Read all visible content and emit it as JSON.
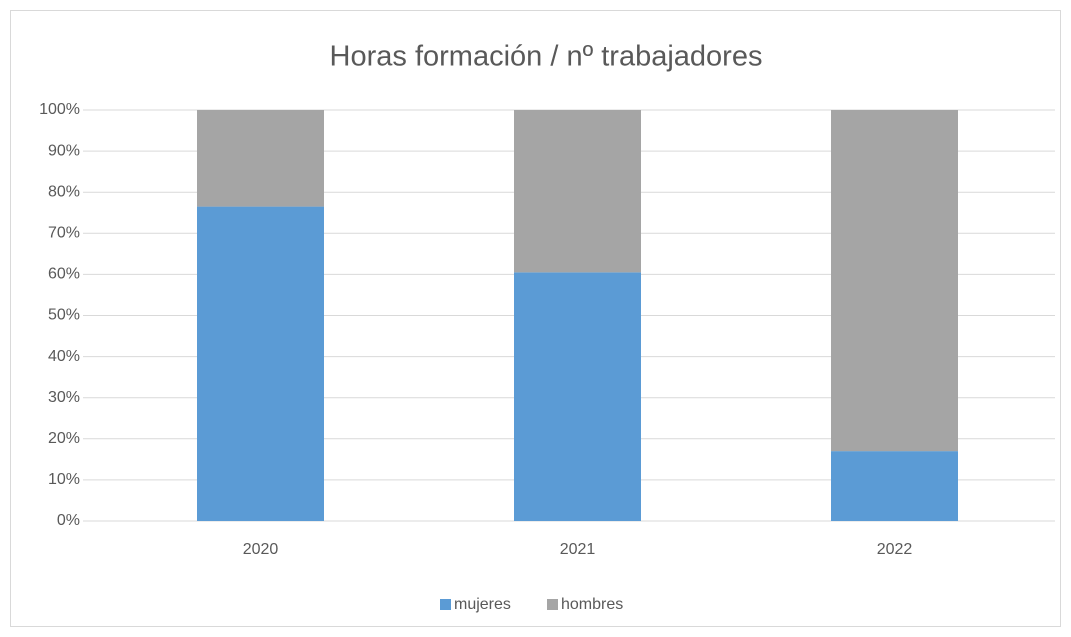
{
  "chart_data": {
    "type": "stacked_bar_100",
    "title": "Horas formación / nº trabajadores",
    "categories": [
      "2020",
      "2021",
      "2022"
    ],
    "series": [
      {
        "name": "mujeres",
        "color": "#5b9bd5",
        "values": [
          76.5,
          60.5,
          17
        ]
      },
      {
        "name": "hombres",
        "color": "#a5a5a5",
        "values": [
          23.5,
          39.5,
          83
        ]
      }
    ],
    "ylim": [
      0,
      100
    ],
    "yticks": [
      {
        "value": 0,
        "label": "0%"
      },
      {
        "value": 10,
        "label": "10%"
      },
      {
        "value": 20,
        "label": "20%"
      },
      {
        "value": 30,
        "label": "30%"
      },
      {
        "value": 40,
        "label": "40%"
      },
      {
        "value": 50,
        "label": "50%"
      },
      {
        "value": 60,
        "label": "60%"
      },
      {
        "value": 70,
        "label": "70%"
      },
      {
        "value": 80,
        "label": "80%"
      },
      {
        "value": 90,
        "label": "90%"
      },
      {
        "value": 100,
        "label": "100%"
      }
    ],
    "grid": true,
    "legend": "bottom"
  }
}
